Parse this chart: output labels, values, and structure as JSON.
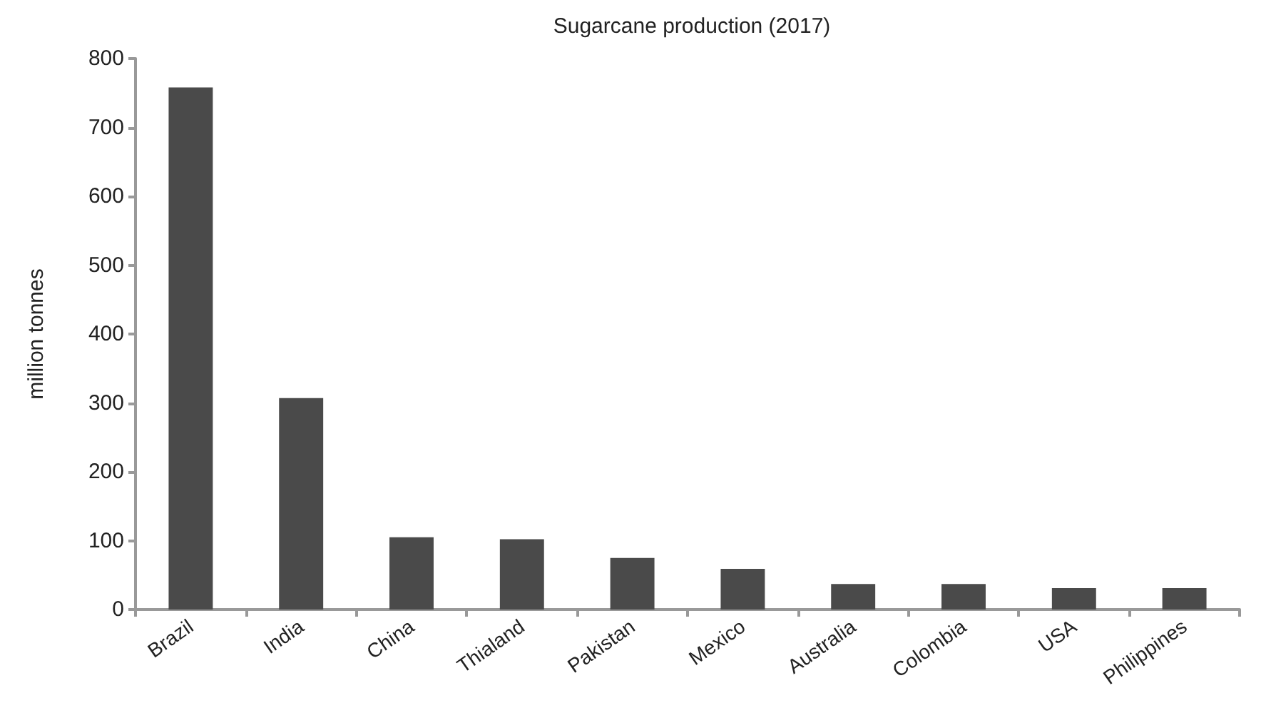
{
  "chart_data": {
    "type": "bar",
    "title": "Sugarcane production (2017)",
    "ylabel": "million tonnes",
    "categories": [
      "Brazil",
      "India",
      "China",
      "Thialand",
      "Pakistan",
      "Mexico",
      "Australia",
      "Colombia",
      "USA",
      "Philippines"
    ],
    "values": [
      758,
      307,
      105,
      102,
      75,
      59,
      37,
      37,
      31,
      31
    ],
    "color": "#4a4a4a",
    "ylim": [
      0,
      800
    ],
    "yticks": [
      0,
      100,
      200,
      300,
      400,
      500,
      600,
      700,
      800
    ],
    "grid": false
  }
}
